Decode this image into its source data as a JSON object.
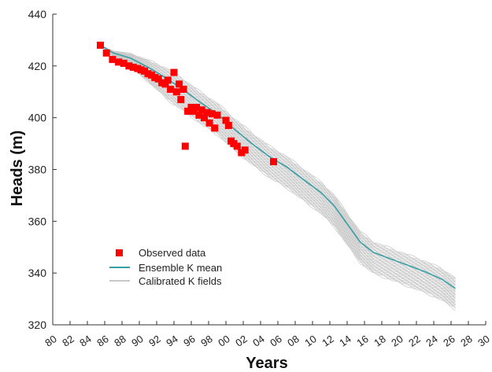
{
  "chart_data": {
    "type": "line",
    "xlabel": "Years",
    "ylabel": "Heads (m)",
    "xlim": [
      1980,
      2030
    ],
    "ylim": [
      320,
      440
    ],
    "y_ticks": [
      320,
      340,
      360,
      380,
      400,
      420,
      440
    ],
    "x_tick_labels": [
      "80",
      "82",
      "84",
      "86",
      "88",
      "90",
      "92",
      "94",
      "96",
      "98",
      "00",
      "02",
      "04",
      "06",
      "08",
      "10",
      "12",
      "14",
      "16",
      "18",
      "20",
      "22",
      "24",
      "26",
      "28",
      "30"
    ],
    "grid": false,
    "legend_position": "bottom-left",
    "legend": [
      {
        "label": "Observed data",
        "kind": "marker",
        "color": "#ff0000"
      },
      {
        "label": "Ensemble K mean",
        "kind": "line",
        "color": "#3a9ea5"
      },
      {
        "label": "Calibrated K fields",
        "kind": "line",
        "color": "#c8c8c8"
      }
    ],
    "series": [
      {
        "name": "Ensemble K mean",
        "type": "line",
        "color": "#3a9ea5",
        "x": [
          1985.5,
          1987,
          1989,
          1991,
          1993,
          1995,
          1997,
          1999,
          2001,
          2003,
          2005,
          2007,
          2009,
          2011,
          2012.5,
          2014,
          2015.5,
          2017,
          2019,
          2021,
          2023,
          2025,
          2026.5
        ],
        "y": [
          428,
          425,
          423,
          419.5,
          415.5,
          411,
          406,
          401.5,
          395.5,
          390,
          385,
          381,
          376,
          371,
          366,
          359,
          352,
          348,
          345.5,
          343,
          340.5,
          337.5,
          334
        ]
      },
      {
        "name": "Observed data",
        "type": "scatter",
        "color": "#ff0000",
        "x": [
          1985.5,
          1986.2,
          1986.9,
          1987.6,
          1988.2,
          1988.8,
          1989.3,
          1989.8,
          1990.2,
          1990.6,
          1991.0,
          1991.4,
          1991.8,
          1992.2,
          1992.6,
          1993.0,
          1993.3,
          1993.6,
          1994.0,
          1994.3,
          1994.6,
          1994.8,
          1995.1,
          1995.3,
          1995.6,
          1996.0,
          1996.3,
          1996.6,
          1996.9,
          1997.2,
          1997.5,
          1997.8,
          1998.1,
          1998.4,
          1998.7,
          1999.0,
          2000.0,
          2000.3,
          2000.6,
          2000.9,
          2001.3,
          2001.8,
          2002.2,
          2005.5
        ],
        "y": [
          428,
          425,
          422.5,
          421.5,
          421,
          420,
          419.5,
          419,
          418.5,
          418,
          417,
          416.5,
          415.5,
          415,
          413.5,
          413,
          414.5,
          411,
          417.5,
          410,
          413,
          407,
          411,
          389,
          402.5,
          404,
          402.5,
          404,
          401,
          403,
          400,
          402,
          398,
          401.5,
          396,
          401,
          399,
          397,
          391,
          390,
          389,
          386.5,
          387.5,
          383
        ]
      }
    ],
    "ensemble": {
      "name": "Calibrated K fields",
      "type": "line",
      "color": "#c8c8c8",
      "count": 40,
      "spread_m": [
        -8,
        4
      ]
    }
  }
}
